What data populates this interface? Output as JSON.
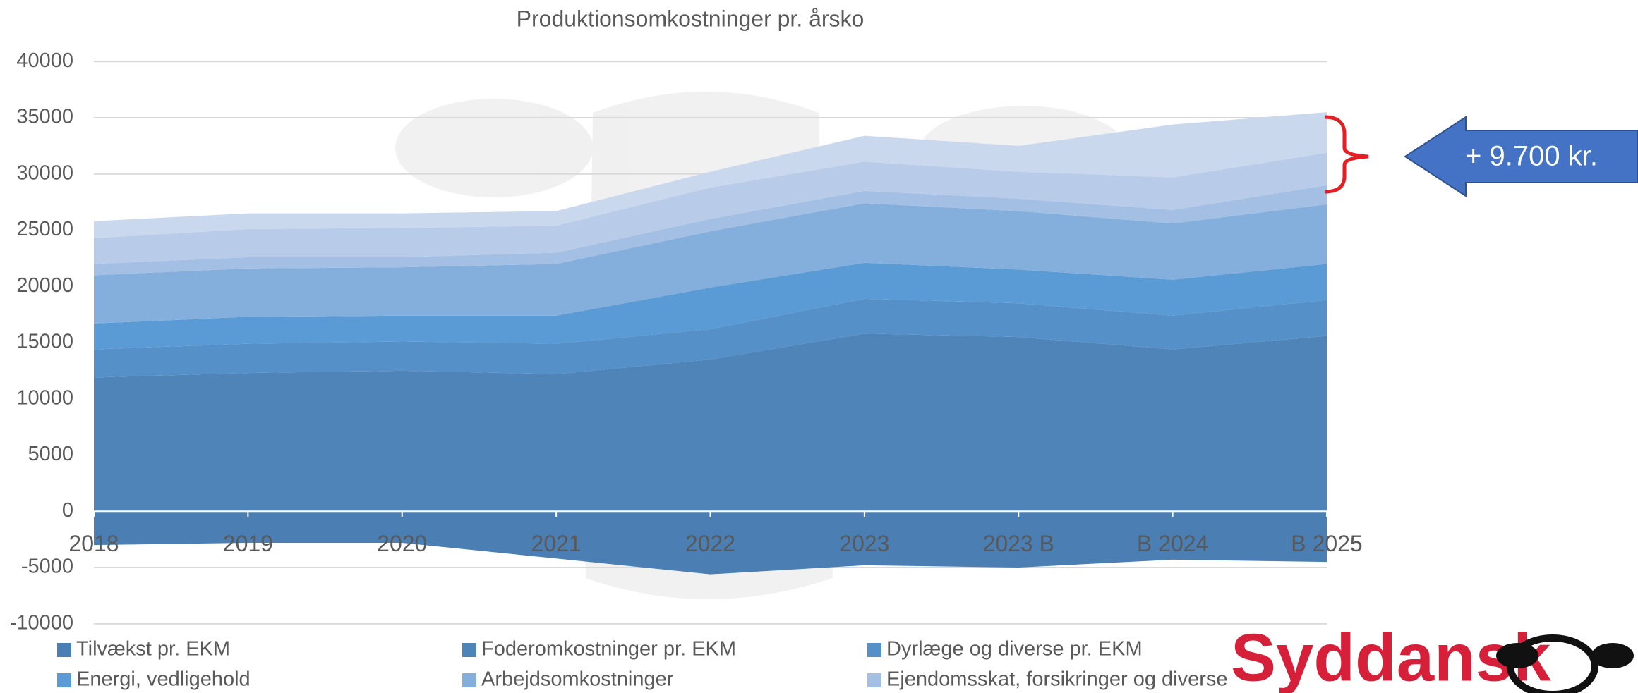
{
  "chart_data": {
    "type": "stacked_area",
    "title": "Produktionsomkostninger pr. årsko",
    "categories": [
      "2018",
      "2019",
      "2020",
      "2021",
      "2022",
      "2023",
      "2023 B",
      "B 2024",
      "B 2025"
    ],
    "series": [
      {
        "name": "Tilvækst pr. EKM",
        "color": "#4b7fb3",
        "values": [
          -3000,
          -2800,
          -2800,
          -4200,
          -5600,
          -4800,
          -5000,
          -4300,
          -4500
        ]
      },
      {
        "name": "Foderomkostninger pr. EKM",
        "color": "#4e84b8",
        "values": [
          11900,
          12300,
          12500,
          12200,
          13500,
          15800,
          15500,
          14400,
          15600
        ]
      },
      {
        "name": "Dyrlæge og diverse pr. EKM",
        "color": "#5590c8",
        "values": [
          2500,
          2600,
          2600,
          2700,
          2700,
          3100,
          3000,
          3000,
          3200
        ]
      },
      {
        "name": "Energi, vedligehold",
        "color": "#5b9bd5",
        "values": [
          2300,
          2400,
          2300,
          2500,
          3700,
          3200,
          3000,
          3200,
          3200
        ]
      },
      {
        "name": "Arbejdsomkostninger",
        "color": "#84afdc",
        "values": [
          4300,
          4300,
          4300,
          4600,
          5000,
          5300,
          5200,
          5000,
          5300
        ]
      },
      {
        "name": "Ejendomsskat, forsikringer og diverse",
        "color": "#a3bfe3",
        "values": [
          1000,
          1000,
          900,
          1000,
          1100,
          1100,
          1100,
          1200,
          1700
        ]
      },
      {
        "color": "#b8cce9",
        "values": [
          2300,
          2500,
          2600,
          2400,
          2800,
          2600,
          2400,
          2900,
          2900
        ]
      },
      {
        "color": "#cad8ee",
        "values": [
          1500,
          1400,
          1300,
          1300,
          1400,
          2300,
          2300,
          4700,
          3600
        ]
      }
    ],
    "ylim": [
      -10000,
      40000
    ],
    "yticks": [
      -10000,
      -5000,
      0,
      5000,
      10000,
      15000,
      20000,
      25000,
      30000,
      35000,
      40000
    ],
    "grid": true,
    "annotation": "+ 9.700 kr."
  },
  "logo": {
    "text": "Syddansk"
  }
}
